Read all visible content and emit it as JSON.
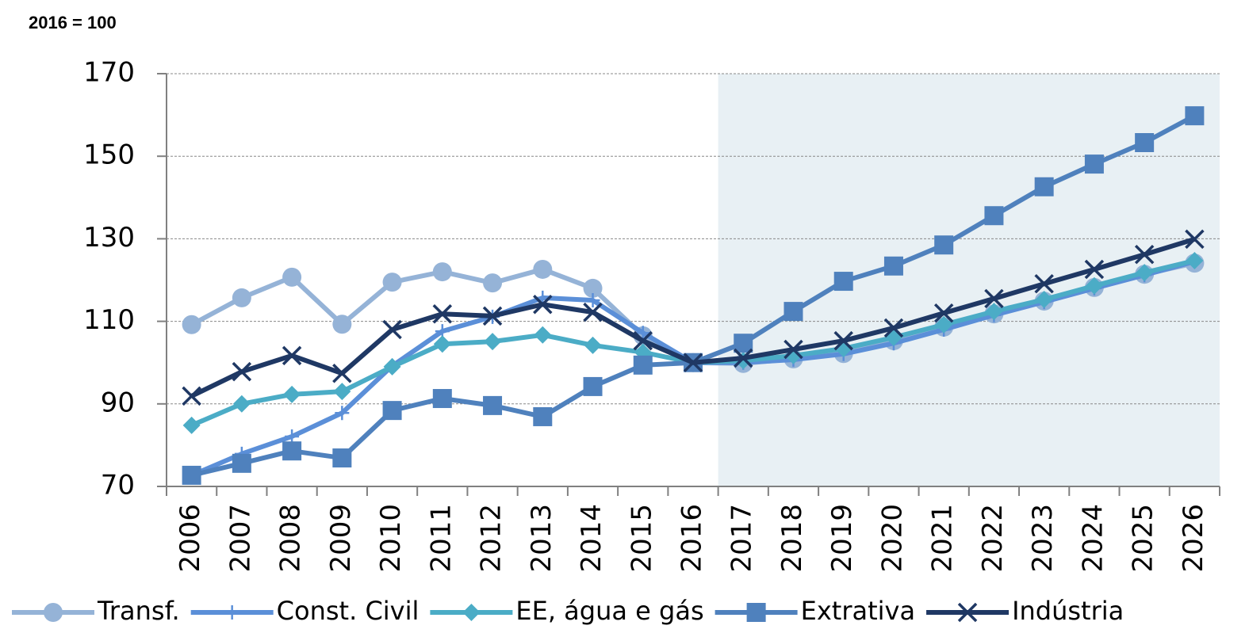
{
  "chart_data": {
    "type": "line",
    "subtitle": "2016 = 100",
    "categories": [
      "2006",
      "2007",
      "2008",
      "2009",
      "2010",
      "2011",
      "2012",
      "2013",
      "2014",
      "2015",
      "2016",
      "2017",
      "2018",
      "2019",
      "2020",
      "2021",
      "2022",
      "2023",
      "2024",
      "2025",
      "2026"
    ],
    "series": [
      {
        "name": "Transf.",
        "color": "#95b3d7",
        "marker": "circle",
        "values": [
          109.2,
          115.7,
          120.7,
          109.3,
          119.5,
          122.0,
          119.3,
          122.6,
          118.0,
          106.5,
          100,
          99.8,
          100.9,
          102.2,
          105.3,
          108.6,
          111.8,
          114.9,
          118.2,
          121.4,
          124.1
        ]
      },
      {
        "name": "Const. Civil",
        "color": "#5b8fd8",
        "marker": "plus",
        "values": [
          72.7,
          77.9,
          82.1,
          87.8,
          99.2,
          107.6,
          111.1,
          115.7,
          115.1,
          107.2,
          100,
          100.0,
          100.7,
          102.1,
          104.7,
          108.0,
          111.5,
          114.7,
          118.0,
          121.2,
          124.5
        ]
      },
      {
        "name": "EE, água e gás",
        "color": "#4bacc6",
        "marker": "diamond",
        "values": [
          84.8,
          90.0,
          92.3,
          93.0,
          99.0,
          104.5,
          105.1,
          106.7,
          104.2,
          102.5,
          100,
          100.5,
          101.7,
          103.4,
          106.1,
          109.2,
          112.4,
          115.3,
          118.6,
          121.8,
          124.7
        ]
      },
      {
        "name": "Extrativa",
        "color": "#4f81bd",
        "marker": "square",
        "values": [
          72.7,
          75.6,
          78.6,
          76.9,
          88.4,
          91.3,
          89.6,
          86.9,
          94.2,
          99.4,
          100,
          104.7,
          112.4,
          119.7,
          123.4,
          128.5,
          135.6,
          142.6,
          148.1,
          153.3,
          159.8
        ]
      },
      {
        "name": "Indústria",
        "color": "#1f3864",
        "marker": "x",
        "values": [
          91.9,
          97.8,
          101.7,
          97.4,
          108.0,
          111.8,
          111.3,
          114.1,
          112.2,
          105.3,
          100,
          101.1,
          103.2,
          105.3,
          108.4,
          112.0,
          115.5,
          119.1,
          122.6,
          126.2,
          129.9
        ]
      }
    ],
    "ylim": [
      70,
      170
    ],
    "yticks": [
      70,
      90,
      110,
      130,
      150,
      170
    ],
    "grid": true,
    "legend": "bottom"
  }
}
